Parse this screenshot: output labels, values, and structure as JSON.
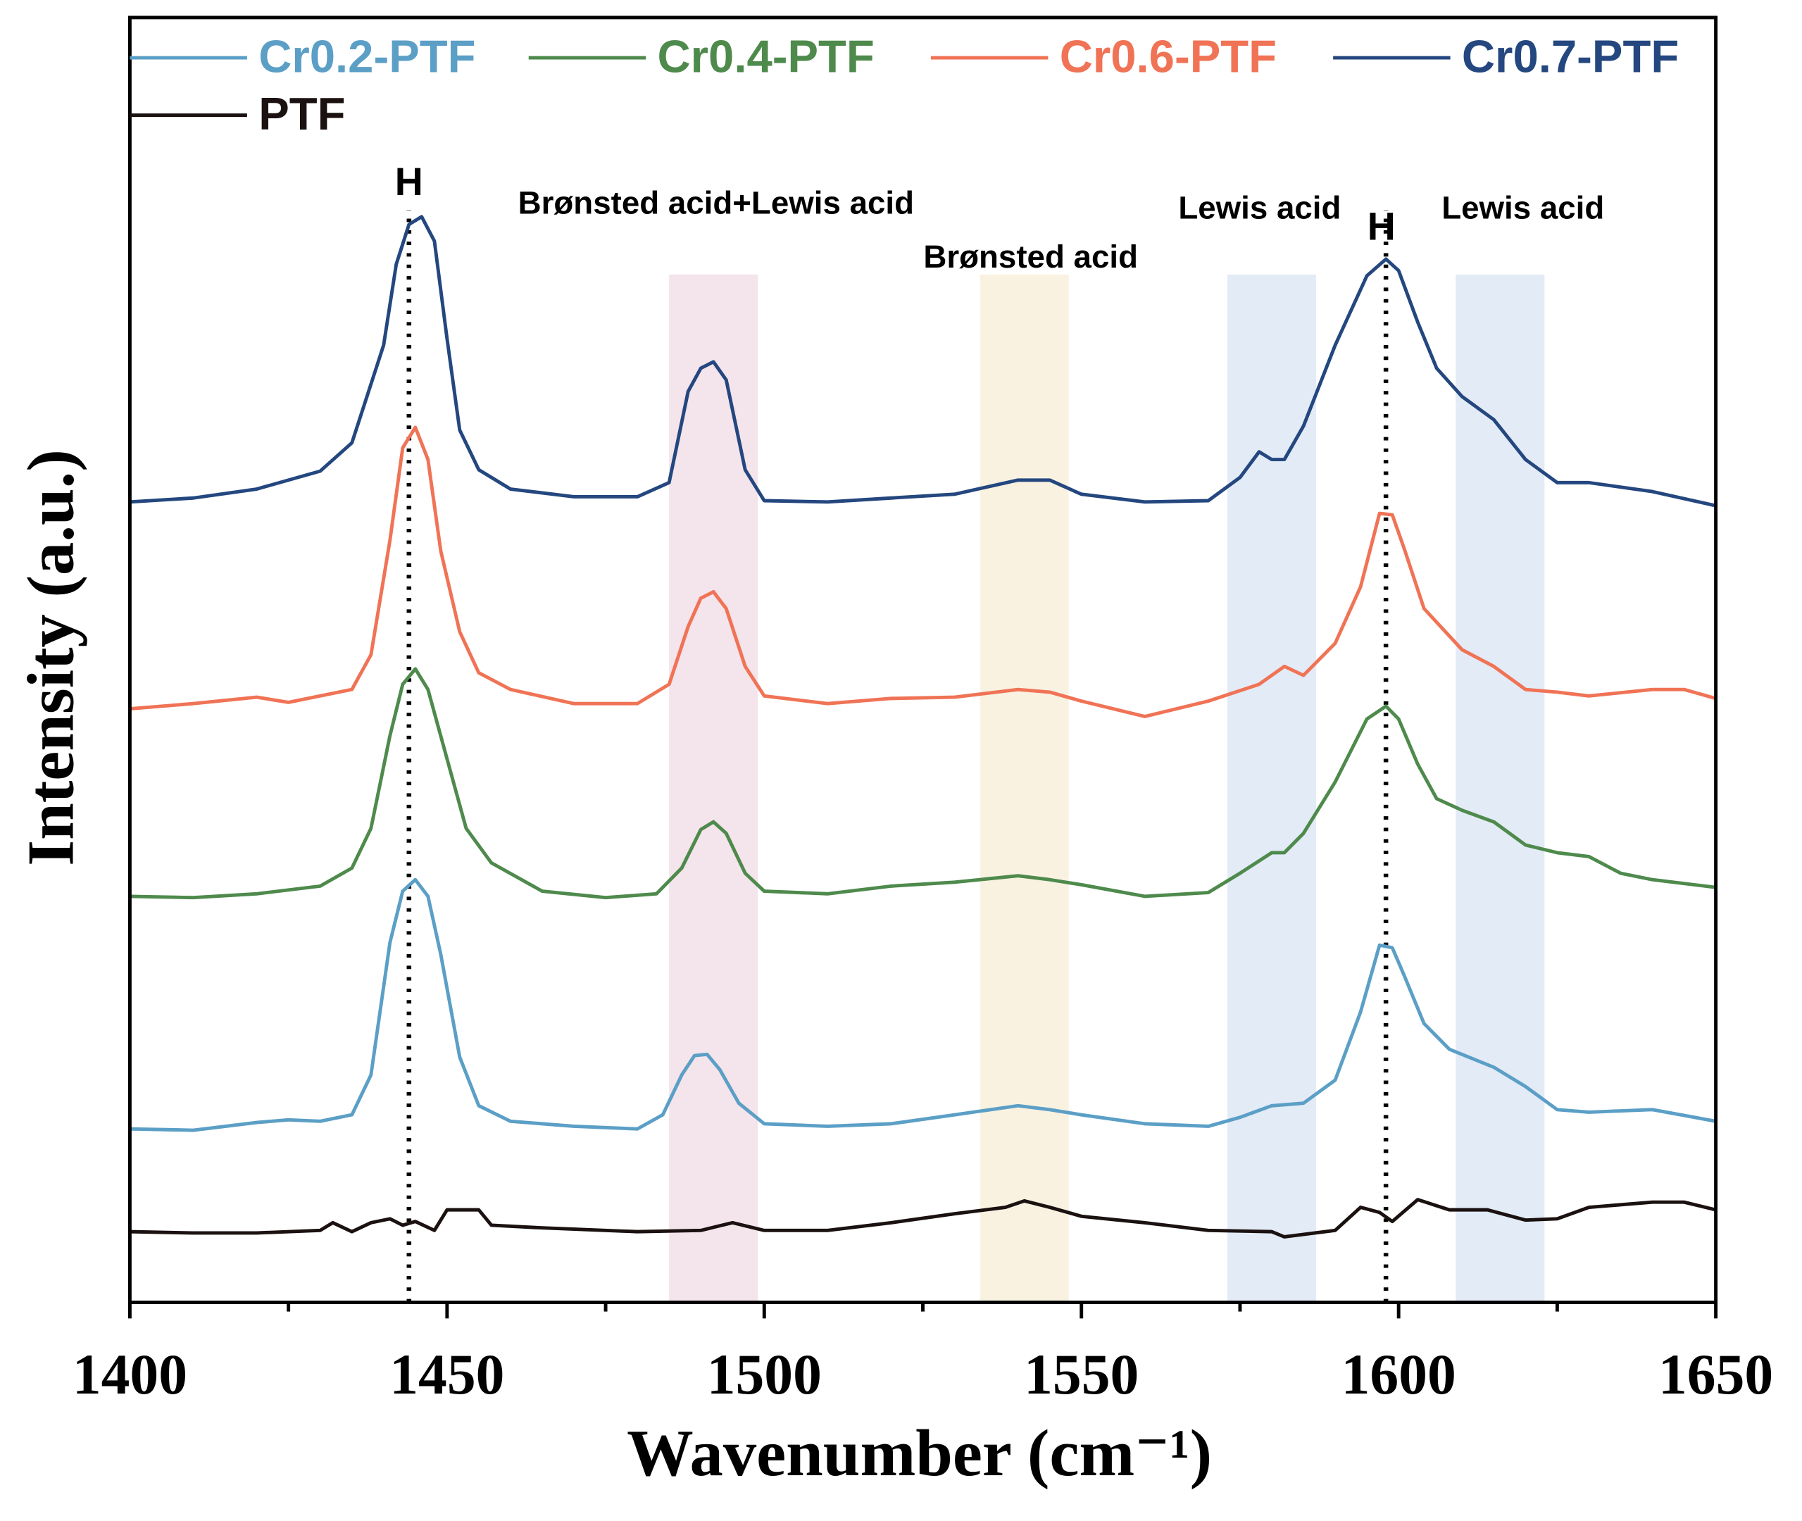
{
  "chart_data": {
    "type": "line",
    "xlabel": "Wavenumber (cm⁻¹)",
    "ylabel": "Intensity (a.u.)",
    "xlim": [
      1400,
      1650
    ],
    "xticks": [
      1400,
      1450,
      1500,
      1550,
      1600,
      1650
    ],
    "xminorticks": [
      1425,
      1475,
      1525,
      1575,
      1625
    ],
    "ylim": [
      0,
      100
    ],
    "legend": "top-left",
    "bands": [
      {
        "xlim": [
          1485,
          1499
        ],
        "color": "#f4e4eb"
      },
      {
        "xlim": [
          1534,
          1548
        ],
        "color": "#f9f2e1"
      },
      {
        "xlim": [
          1573,
          1587
        ],
        "color": "#e3ebf6"
      },
      {
        "xlim": [
          1609,
          1623
        ],
        "color": "#e3ebf6"
      }
    ],
    "vlines": [
      1444,
      1598
    ],
    "annotations": [
      {
        "text": "H",
        "x": 1444,
        "y": 87.0
      },
      {
        "text": "Brønsted acid+Lewis acid",
        "x": 1492.4,
        "y": 85.4
      },
      {
        "text": "Brønsted acid",
        "x": 1542.0,
        "y": 81.2
      },
      {
        "text": "Lewis acid",
        "x": 1578.1,
        "y": 85.0
      },
      {
        "text": "H",
        "x": 1597.3,
        "y": 83.5
      },
      {
        "text": "Lewis acid",
        "x": 1619.6,
        "y": 85.0
      }
    ],
    "series": [
      {
        "name": "Cr0.2-PTF",
        "color": "#5b9fc6",
        "x": [
          1400,
          1410,
          1420,
          1425,
          1430,
          1435,
          1438,
          1441,
          1443,
          1445,
          1447,
          1449,
          1452,
          1455,
          1460,
          1470,
          1480,
          1484,
          1487,
          1489,
          1491,
          1493,
          1496,
          1500,
          1510,
          1520,
          1530,
          1540,
          1545,
          1550,
          1560,
          1570,
          1575,
          1580,
          1585,
          1590,
          1594,
          1597,
          1599,
          1601,
          1604,
          1608,
          1615,
          1620,
          1625,
          1630,
          1640,
          1650
        ],
        "values": [
          13.5,
          13.4,
          14.0,
          14.2,
          14.1,
          14.6,
          17.7,
          28.0,
          32.0,
          32.9,
          31.6,
          27.1,
          19.1,
          15.3,
          14.1,
          13.7,
          13.5,
          14.6,
          17.7,
          19.2,
          19.3,
          18.1,
          15.5,
          13.9,
          13.7,
          13.9,
          14.6,
          15.3,
          15.0,
          14.6,
          13.9,
          13.7,
          14.4,
          15.3,
          15.5,
          17.3,
          22.6,
          27.8,
          27.6,
          25.3,
          21.7,
          19.7,
          18.3,
          16.8,
          15.0,
          14.8,
          15.0,
          14.1
        ]
      },
      {
        "name": "Cr0.4-PTF",
        "color": "#4e8a4c",
        "x": [
          1400,
          1410,
          1420,
          1430,
          1435,
          1438,
          1441,
          1443,
          1445,
          1447,
          1450,
          1453,
          1457,
          1465,
          1475,
          1483,
          1487,
          1490,
          1492,
          1494,
          1497,
          1500,
          1510,
          1520,
          1530,
          1540,
          1545,
          1550,
          1560,
          1570,
          1575,
          1580,
          1582,
          1585,
          1590,
          1595,
          1598,
          1600,
          1603,
          1606,
          1610,
          1615,
          1620,
          1625,
          1630,
          1635,
          1640,
          1650
        ],
        "values": [
          31.6,
          31.5,
          31.8,
          32.4,
          33.8,
          36.9,
          44.1,
          48.1,
          49.3,
          47.7,
          42.3,
          36.9,
          34.2,
          32.0,
          31.5,
          31.8,
          33.8,
          36.8,
          37.4,
          36.5,
          33.4,
          32.0,
          31.8,
          32.4,
          32.7,
          33.2,
          32.9,
          32.5,
          31.6,
          31.9,
          33.4,
          35.0,
          35.0,
          36.5,
          40.5,
          45.4,
          46.4,
          45.4,
          41.9,
          39.2,
          38.3,
          37.4,
          35.6,
          35.0,
          34.7,
          33.4,
          32.9,
          32.3
        ]
      },
      {
        "name": "Cr0.6-PTF",
        "color": "#f07356",
        "x": [
          1400,
          1410,
          1420,
          1425,
          1435,
          1438,
          1441,
          1443,
          1445,
          1447,
          1449,
          1452,
          1455,
          1460,
          1470,
          1480,
          1485,
          1488,
          1490,
          1492,
          1494,
          1497,
          1500,
          1510,
          1520,
          1530,
          1540,
          1545,
          1550,
          1560,
          1570,
          1578,
          1582,
          1585,
          1590,
          1594,
          1597,
          1599,
          1601,
          1604,
          1610,
          1615,
          1620,
          1625,
          1630,
          1640,
          1645,
          1650
        ],
        "values": [
          46.2,
          46.6,
          47.1,
          46.7,
          47.7,
          50.4,
          59.3,
          66.5,
          68.1,
          65.6,
          58.5,
          52.2,
          49.0,
          47.7,
          46.6,
          46.6,
          48.1,
          52.6,
          54.8,
          55.3,
          54.0,
          49.5,
          47.2,
          46.6,
          47.0,
          47.1,
          47.7,
          47.5,
          46.8,
          45.6,
          46.8,
          48.1,
          49.5,
          48.8,
          51.3,
          55.7,
          61.4,
          61.3,
          58.5,
          54.0,
          50.8,
          49.5,
          47.7,
          47.5,
          47.2,
          47.7,
          47.7,
          47.0
        ]
      },
      {
        "name": "Cr0.7-PTF",
        "color": "#24477f",
        "x": [
          1400,
          1410,
          1420,
          1430,
          1435,
          1440,
          1442,
          1444,
          1446,
          1448,
          1450,
          1452,
          1455,
          1460,
          1470,
          1480,
          1485,
          1488,
          1490,
          1492,
          1494,
          1497,
          1500,
          1510,
          1520,
          1530,
          1540,
          1545,
          1550,
          1560,
          1570,
          1575,
          1578,
          1580,
          1582,
          1585,
          1590,
          1595,
          1598,
          1600,
          1603,
          1606,
          1610,
          1615,
          1620,
          1625,
          1630,
          1640,
          1650
        ],
        "values": [
          62.3,
          62.6,
          63.3,
          64.7,
          66.9,
          74.5,
          80.8,
          83.9,
          84.5,
          82.6,
          75.0,
          67.9,
          64.8,
          63.3,
          62.7,
          62.7,
          63.8,
          70.9,
          72.7,
          73.2,
          71.8,
          64.8,
          62.4,
          62.3,
          62.6,
          62.9,
          64.0,
          64.0,
          62.9,
          62.3,
          62.4,
          64.2,
          66.2,
          65.6,
          65.6,
          68.2,
          74.5,
          79.9,
          81.2,
          80.3,
          76.3,
          72.7,
          70.5,
          68.7,
          65.6,
          63.8,
          63.8,
          63.1,
          62.0
        ]
      },
      {
        "name": "PTF",
        "color": "#1a1110",
        "x": [
          1400,
          1410,
          1420,
          1430,
          1432,
          1435,
          1438,
          1441,
          1443,
          1445,
          1448,
          1450,
          1455,
          1457,
          1465,
          1480,
          1490,
          1495,
          1500,
          1510,
          1520,
          1530,
          1538,
          1541,
          1545,
          1550,
          1560,
          1570,
          1580,
          1582,
          1590,
          1594,
          1597,
          1599,
          1603,
          1608,
          1614,
          1620,
          1625,
          1630,
          1640,
          1645,
          1650
        ],
        "values": [
          5.5,
          5.4,
          5.4,
          5.6,
          6.2,
          5.5,
          6.2,
          6.5,
          6.0,
          6.3,
          5.6,
          7.2,
          7.2,
          6.0,
          5.8,
          5.5,
          5.6,
          6.2,
          5.6,
          5.6,
          6.2,
          6.9,
          7.4,
          7.9,
          7.4,
          6.7,
          6.2,
          5.6,
          5.5,
          5.1,
          5.6,
          7.4,
          7.0,
          6.3,
          8.0,
          7.2,
          7.2,
          6.4,
          6.5,
          7.4,
          7.8,
          7.8,
          7.2
        ]
      }
    ]
  }
}
